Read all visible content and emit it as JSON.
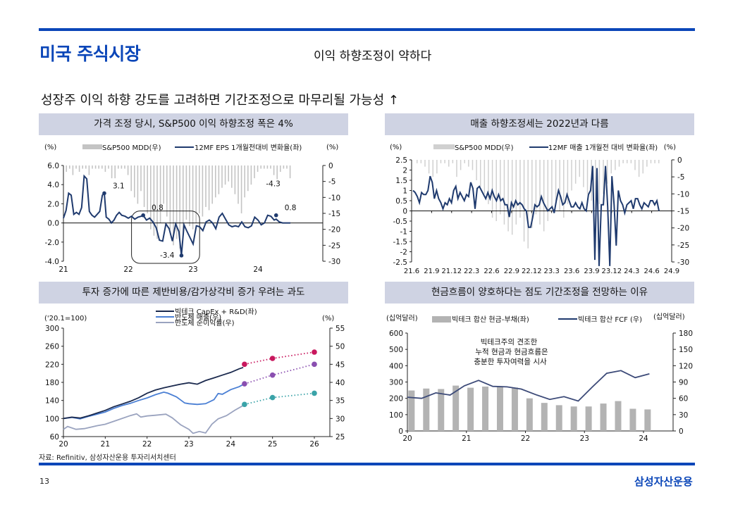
{
  "header": {
    "section_title": "미국 주식시장",
    "subtitle": "이익 하향조정이 약하다",
    "headline": "성장주 이익 하향 강도를 고려하면 기간조정으로 마무리될 가능성 ↑"
  },
  "panels": [
    {
      "title": "가격 조정 당시, S&P500 이익 하향조정 폭은 4%"
    },
    {
      "title": "매출 하향조정세는 2022년과 다름"
    },
    {
      "title": "투자 증가에 따른 제반비용/감가상각비 증가 우려는 과도"
    },
    {
      "title": "현금흐름이 양호하다는 점도 기간조정을 전망하는 이유"
    }
  ],
  "footer": {
    "source": "자료: Refinitiv, 삼성자산운용 투자리서치센터",
    "page_number": "13",
    "brand": "삼성자산운용"
  },
  "colors": {
    "accent_blue": "#0b46b8",
    "navy_line": "#1f3a6e",
    "bar_gray": "#b8b8b8",
    "panel_bg": "#cfd3e3",
    "capex": "#1b2a4e",
    "semi_sales": "#4a7fd4",
    "semi_margin": "#9aa3bf",
    "forecast_capex": "#c8175d",
    "forecast_sales": "#8a4fb0",
    "forecast_margin": "#3aa3a8"
  },
  "chart_data": [
    {
      "type": "line",
      "title": "가격 조정 당시, S&P500 이익 하향조정 폭은 4%",
      "left_unit": "(%)",
      "right_unit": "(%)",
      "legend": [
        "S&P500 MDD(우)",
        "12MF EPS 1개월전대비 변화율(좌)"
      ],
      "x_ticks": [
        "21",
        "22",
        "23",
        "24"
      ],
      "x_range": [
        2021.0,
        2025.0
      ],
      "y_left": {
        "ticks": [
          "6.0",
          "4.0",
          "2.0",
          "0.0",
          "-2.0",
          "-4.0"
        ],
        "range": [
          -4,
          6
        ]
      },
      "y_right": {
        "ticks": [
          "0",
          "-5",
          "-10",
          "-15",
          "-20",
          "-25",
          "-30"
        ],
        "range": [
          -30,
          0
        ]
      },
      "annotations": [
        {
          "label": "3.1",
          "x": 2021.63,
          "y": 3.1
        },
        {
          "label": "0.8",
          "x": 2022.23,
          "y": 0.8
        },
        {
          "label": "-3.4",
          "x": 2022.82,
          "y": -3.4
        },
        {
          "label": "-4.3",
          "x": 2024.3,
          "y_right": -4.3
        },
        {
          "label": "0.8",
          "x": 2024.28,
          "y": 0.8
        }
      ],
      "series": [
        {
          "name": "12MF EPS 1개월전대비 변화율(좌)",
          "axis": "left",
          "x": [
            2021.0,
            2021.04,
            2021.08,
            2021.12,
            2021.16,
            2021.2,
            2021.24,
            2021.28,
            2021.32,
            2021.36,
            2021.4,
            2021.44,
            2021.48,
            2021.52,
            2021.56,
            2021.6,
            2021.63,
            2021.66,
            2021.7,
            2021.74,
            2021.78,
            2021.82,
            2021.86,
            2021.9,
            2021.95,
            2022.0,
            2022.05,
            2022.1,
            2022.15,
            2022.2,
            2022.23,
            2022.28,
            2022.33,
            2022.38,
            2022.43,
            2022.48,
            2022.53,
            2022.58,
            2022.63,
            2022.68,
            2022.73,
            2022.78,
            2022.82,
            2022.86,
            2022.9,
            2022.95,
            2023.0,
            2023.05,
            2023.1,
            2023.15,
            2023.2,
            2023.25,
            2023.3,
            2023.35,
            2023.4,
            2023.45,
            2023.5,
            2023.55,
            2023.6,
            2023.65,
            2023.7,
            2023.75,
            2023.8,
            2023.85,
            2023.9,
            2023.95,
            2024.0,
            2024.05,
            2024.1,
            2024.15,
            2024.2,
            2024.25,
            2024.28,
            2024.33,
            2024.38,
            2024.43,
            2024.5
          ],
          "y": [
            0.5,
            1.3,
            3.1,
            2.9,
            0.9,
            1.1,
            0.9,
            1.6,
            4.9,
            4.6,
            1.2,
            0.8,
            0.6,
            0.9,
            1.2,
            2.9,
            3.1,
            0.6,
            0.4,
            0.0,
            0.3,
            0.8,
            1.1,
            0.8,
            0.7,
            0.5,
            0.7,
            0.4,
            0.6,
            0.7,
            0.8,
            0.3,
            0.5,
            0.1,
            -0.5,
            -1.8,
            -1.9,
            -0.1,
            -0.6,
            -1.9,
            -0.1,
            -0.9,
            -3.4,
            -0.2,
            -0.8,
            -1.5,
            -2.2,
            -0.3,
            -0.4,
            -0.8,
            0.1,
            0.3,
            0.0,
            -0.6,
            0.6,
            1.0,
            0.4,
            -0.2,
            -0.4,
            -0.3,
            -0.4,
            0.1,
            -0.4,
            -0.5,
            -0.3,
            0.6,
            0.3,
            -0.2,
            0.0,
            0.8,
            0.7,
            0.3,
            0.4,
            0.1,
            0.0,
            0.0,
            0.0
          ]
        },
        {
          "name": "S&P500 MDD(우)",
          "axis": "right",
          "type": "bar",
          "x": [
            2021.05,
            2021.1,
            2021.15,
            2021.2,
            2021.25,
            2021.3,
            2021.35,
            2021.4,
            2021.45,
            2021.5,
            2021.55,
            2021.6,
            2021.65,
            2021.7,
            2021.75,
            2021.8,
            2021.85,
            2021.9,
            2021.95,
            2022.0,
            2022.05,
            2022.1,
            2022.15,
            2022.2,
            2022.25,
            2022.3,
            2022.35,
            2022.4,
            2022.45,
            2022.5,
            2022.55,
            2022.6,
            2022.65,
            2022.7,
            2022.75,
            2022.8,
            2022.85,
            2022.9,
            2022.95,
            2023.0,
            2023.05,
            2023.1,
            2023.15,
            2023.2,
            2023.25,
            2023.3,
            2023.35,
            2023.4,
            2023.45,
            2023.5,
            2023.55,
            2023.6,
            2023.65,
            2023.7,
            2023.75,
            2023.8,
            2023.85,
            2023.9,
            2023.95,
            2024.0,
            2024.05,
            2024.1,
            2024.15,
            2024.2,
            2024.25,
            2024.3,
            2024.35,
            2024.4,
            2024.45,
            2024.5
          ],
          "y": [
            -2,
            -1,
            -3,
            -1,
            -2,
            -1,
            -1,
            -3,
            -1,
            -1,
            -1,
            -1,
            -2,
            -1,
            -4,
            -4,
            -1,
            -1,
            -1,
            -3,
            -8,
            -10,
            -12,
            -8,
            -13,
            -15,
            -20,
            -22,
            -23,
            -18,
            -12,
            -16,
            -20,
            -25,
            -23,
            -26,
            -22,
            -17,
            -19,
            -20,
            -18,
            -15,
            -16,
            -13,
            -14,
            -12,
            -10,
            -9,
            -7,
            -6,
            -5,
            -7,
            -9,
            -12,
            -15,
            -10,
            -8,
            -6,
            -4,
            -2,
            -1,
            -1,
            -1,
            -1,
            -3,
            -4.3,
            -2,
            -1,
            -1,
            -4
          ]
        }
      ]
    },
    {
      "type": "line",
      "title": "매출 하향조정세는 2022년과 다름",
      "left_unit": "(%)",
      "right_unit": "(%)",
      "legend": [
        "S&P500 MDD(우)",
        "12MF 매출 1개월전 대비 변화율(좌)"
      ],
      "x_ticks": [
        "21.6",
        "21.9",
        "21.12",
        "22.3",
        "22.6",
        "22.9",
        "22.12",
        "23.3",
        "23.6",
        "23.9",
        "23.12",
        "24.3",
        "24.6",
        "24.9"
      ],
      "y_left": {
        "ticks": [
          "2.5",
          "2",
          "1.5",
          "1",
          "0.5",
          "0",
          "-0.5",
          "-1",
          "-1.5",
          "-2",
          "-2.5"
        ],
        "range": [
          -2.5,
          2.5
        ]
      },
      "y_right": {
        "ticks": [
          "0",
          "-5",
          "-10",
          "-15",
          "-20",
          "-25",
          "-30"
        ],
        "range": [
          -30,
          0
        ]
      },
      "series": [
        {
          "name": "12MF 매출 1개월전 대비 변화율(좌)",
          "axis": "left",
          "y": [
            1.0,
            0.9,
            0.7,
            0.4,
            0.9,
            0.8,
            0.8,
            1.0,
            1.7,
            1.4,
            0.6,
            1.0,
            0.6,
            0.4,
            0.1,
            0.4,
            0.3,
            0.6,
            0.4,
            1.0,
            1.2,
            0.6,
            0.9,
            0.7,
            0.5,
            0.8,
            0.7,
            1.4,
            1.1,
            0.1,
            1.1,
            1.2,
            1.0,
            0.8,
            0.6,
            0.9,
            0.6,
            1.0,
            0.7,
            0.5,
            0.8,
            0.5,
            0.6,
            0.3,
            0.3,
            -0.3,
            0.4,
            0.2,
            0.5,
            0.3,
            0.4,
            0.3,
            0.1,
            0.0,
            -0.8,
            -0.8,
            -0.3,
            0.3,
            0.2,
            0.3,
            0.7,
            0.4,
            0.2,
            0.0,
            0.1,
            0.2,
            -0.1,
            0.5,
            1.0,
            0.7,
            0.3,
            0.4,
            0.8,
            0.5,
            0.2,
            0.2,
            0.4,
            0.2,
            0.1,
            0.4,
            0.1,
            0.0,
            0.8,
            1.0,
            2.2,
            -2.4,
            2.1,
            -2.7,
            0.3,
            0.3,
            2.2,
            0.2,
            -2.7,
            1.7,
            0.3,
            -1.7,
            1.0,
            0.5,
            0.3,
            -0.1,
            0.3,
            0.4,
            0.5,
            0.1,
            0.6,
            0.6,
            0.3,
            0.1,
            0.4,
            0.3,
            0.2,
            0.5,
            0.5,
            0.3,
            0.5,
            0.0
          ]
        },
        {
          "name": "S&P500 MDD(우)",
          "axis": "right",
          "type": "bar",
          "y": [
            -1,
            -1,
            -2,
            -4,
            -5,
            -4,
            -1,
            -1,
            -2,
            -1,
            -5,
            -3,
            -1,
            -2,
            -3,
            -6,
            -8,
            -10,
            -13,
            -17,
            -18,
            -16,
            -19,
            -21,
            -22,
            -19,
            -17,
            -24,
            -26,
            -20,
            -16,
            -19,
            -21,
            -18,
            -14,
            -12,
            -15,
            -17,
            -13,
            -9,
            -7,
            -5,
            -8,
            -10,
            -12,
            -15,
            -13,
            -10,
            -7,
            -4,
            -3,
            -2,
            -1,
            -1,
            -1,
            -3,
            -5,
            -4,
            -2,
            -1,
            -1,
            -1
          ]
        }
      ]
    },
    {
      "type": "line",
      "title": "투자 증가에 따른 제반비용/감가상각비 증가 우려는 과도",
      "left_unit": "('20.1=100)",
      "right_unit": "(%)",
      "legend": [
        "빅테크 CapEx + R&D(좌)",
        "반도체 매출(우)",
        "반도체 순이익률(우)"
      ],
      "x_ticks": [
        "20",
        "21",
        "22",
        "23",
        "24",
        "25",
        "26"
      ],
      "y_left": {
        "ticks": [
          "300",
          "260",
          "220",
          "180",
          "140",
          "100",
          "60"
        ],
        "range": [
          60,
          300
        ]
      },
      "y_right": {
        "ticks": [
          "55",
          "50",
          "45",
          "40",
          "35",
          "30",
          "25"
        ],
        "range": [
          25,
          55
        ]
      },
      "series": [
        {
          "name": "빅테크 CapEx + R&D(좌)",
          "axis": "left",
          "x": [
            2020.0,
            2020.2,
            2020.4,
            2020.6,
            2020.8,
            2021.0,
            2021.2,
            2021.4,
            2021.6,
            2021.8,
            2022.0,
            2022.2,
            2022.4,
            2022.6,
            2022.8,
            2023.0,
            2023.2,
            2023.4,
            2023.6,
            2023.8,
            2024.0,
            2024.2,
            2024.3
          ],
          "y": [
            100,
            103,
            101,
            106,
            112,
            118,
            126,
            132,
            138,
            146,
            156,
            163,
            168,
            172,
            176,
            179,
            176,
            184,
            190,
            196,
            202,
            210,
            213
          ]
        },
        {
          "name": "반도체 매출(우)",
          "axis": "right",
          "x": [
            2020.0,
            2020.2,
            2020.4,
            2020.6,
            2020.8,
            2021.0,
            2021.2,
            2021.4,
            2021.6,
            2021.8,
            2022.0,
            2022.2,
            2022.4,
            2022.5,
            2022.7,
            2022.9,
            2023.0,
            2023.2,
            2023.4,
            2023.6,
            2023.7,
            2023.8,
            2024.0,
            2024.2,
            2024.33
          ],
          "y": [
            30.0,
            30.3,
            29.9,
            30.6,
            31.2,
            31.8,
            32.8,
            33.6,
            34.2,
            35.0,
            35.7,
            36.6,
            37.3,
            37.0,
            36.0,
            34.3,
            34.1,
            33.9,
            34.1,
            35.2,
            36.9,
            36.7,
            38.0,
            38.8,
            39.6
          ]
        },
        {
          "name": "반도체 순이익률(우)",
          "axis": "right",
          "x": [
            2020.0,
            2020.1,
            2020.3,
            2020.5,
            2020.8,
            2021.0,
            2021.3,
            2021.6,
            2021.75,
            2021.85,
            2022.0,
            2022.2,
            2022.45,
            2022.6,
            2022.8,
            2023.0,
            2023.1,
            2023.25,
            2023.4,
            2023.55,
            2023.7,
            2023.9,
            2024.1,
            2024.33
          ],
          "y": [
            27.0,
            27.8,
            27.0,
            27.2,
            28.0,
            28.4,
            29.6,
            30.8,
            31.3,
            30.4,
            30.7,
            30.9,
            31.2,
            30.2,
            28.3,
            27.0,
            25.9,
            26.4,
            26.0,
            28.4,
            29.9,
            30.8,
            32.3,
            33.8
          ]
        }
      ],
      "forecasts": [
        {
          "name": "빅테크 CapEx + R&D(좌) 전망",
          "axis": "left",
          "x": [
            2024.33,
            2025.0,
            2026.0
          ],
          "y": [
            220,
            233,
            247
          ]
        },
        {
          "name": "반도체 매출(우) 전망",
          "axis": "right",
          "x": [
            2024.33,
            2025.0,
            2026.0
          ],
          "y": [
            39.6,
            42.0,
            45.0
          ]
        },
        {
          "name": "반도체 순이익률(우) 전망",
          "axis": "right",
          "x": [
            2024.33,
            2025.0,
            2026.0
          ],
          "y": [
            33.9,
            35.8,
            37.0
          ]
        }
      ]
    },
    {
      "type": "bar",
      "title": "현금흐름이 양호하다는 점도 기간조정을 전망하는 이유",
      "left_unit": "(십억달러)",
      "right_unit": "(십억달러)",
      "legend": [
        "빅테크 합산 현금-부채(좌)",
        "빅테크 합산 FCF (우)"
      ],
      "annotation": [
        "빅테크주의 견조한",
        "누적 현금과 현금흐름은",
        "충분한 투자여력을 시사"
      ],
      "x_ticks": [
        "20",
        "21",
        "22",
        "23",
        "24"
      ],
      "y_left": {
        "ticks": [
          "600",
          "500",
          "400",
          "300",
          "200",
          "100",
          "0"
        ],
        "range": [
          0,
          600
        ]
      },
      "y_right": {
        "ticks": [
          "180",
          "150",
          "120",
          "90",
          "60",
          "30",
          "0"
        ],
        "range": [
          0,
          180
        ]
      },
      "series": [
        {
          "name": "빅테크 합산 현금-부채(좌)",
          "axis": "left",
          "type": "bar",
          "values": [
            248,
            260,
            257,
            278,
            265,
            272,
            270,
            266,
            200,
            172,
            158,
            150,
            150,
            168,
            183,
            136,
            132
          ]
        },
        {
          "name": "빅테크 합산 FCF (우)",
          "axis": "right",
          "type": "line",
          "values": [
            62,
            60,
            70,
            66,
            83,
            93,
            82,
            81,
            77,
            67,
            58,
            63,
            55,
            81,
            106,
            111,
            98,
            105
          ]
        }
      ]
    }
  ]
}
